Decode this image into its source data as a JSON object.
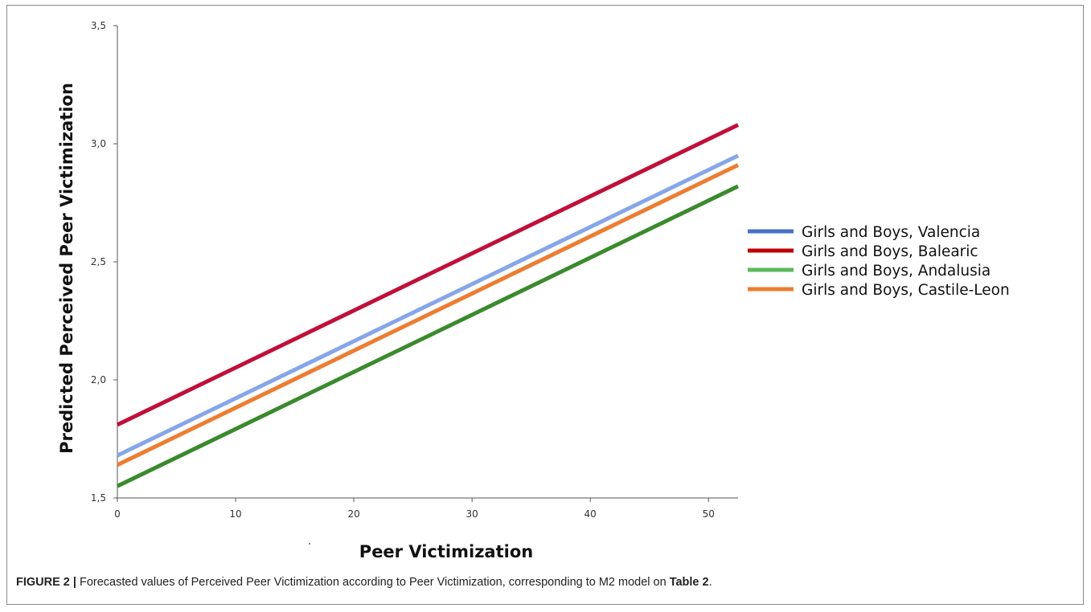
{
  "chart_data": {
    "type": "line",
    "title": "",
    "xlabel": "Peer Victimization",
    "ylabel": "Predicted Perceived Peer Victimization",
    "xlim": [
      0,
      52.5
    ],
    "ylim": [
      1.5,
      3.5
    ],
    "x_ticks": [
      0,
      10,
      20,
      30,
      40,
      50
    ],
    "x_tick_labels": [
      "0",
      "10",
      "20",
      "30",
      "40",
      "50"
    ],
    "y_ticks": [
      1.5,
      2.0,
      2.5,
      3.0,
      3.5
    ],
    "y_tick_labels": [
      "1,5",
      "2,0",
      "2,5",
      "3,0",
      "3,5"
    ],
    "grid": false,
    "legend_position": "right",
    "series": [
      {
        "name": "Girls and Boys, Valencia",
        "color": "#4472c4",
        "line_color": "#86a6e8",
        "x": [
          0,
          52.5
        ],
        "y": [
          1.68,
          2.95
        ]
      },
      {
        "name": "Girls and Boys, Balearic",
        "color": "#c00000",
        "line_color": "#c0103a",
        "x": [
          0,
          52.5
        ],
        "y": [
          1.81,
          3.08
        ]
      },
      {
        "name": "Girls and Boys, Andalusia",
        "color": "#5cb85c",
        "line_color": "#3b8a2e",
        "x": [
          0,
          52.5
        ],
        "y": [
          1.55,
          2.82
        ]
      },
      {
        "name": "Girls and Boys, Castile-Leon",
        "color": "#ed7d31",
        "line_color": "#ed7d31",
        "x": [
          0,
          52.5
        ],
        "y": [
          1.64,
          2.91
        ]
      }
    ]
  },
  "caption": {
    "label": "FIGURE 2 |",
    "text_before": " Forecasted values of Perceived Peer Victimization according to Peer Victimization, corresponding to M2 model on ",
    "ref": "Table 2",
    "text_after": "."
  }
}
